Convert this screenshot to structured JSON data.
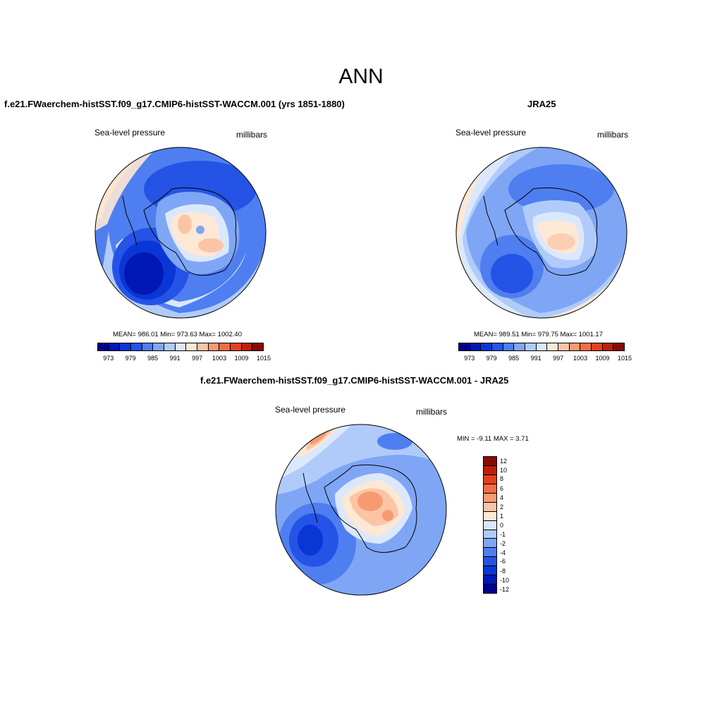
{
  "title": "ANN",
  "panels": [
    {
      "title": "f.e21.FWaerchem-histSST.f09_g17.CMIP6-histSST-WACCM.001 (yrs 1851-1880)",
      "left_label": "Sea-level pressure",
      "right_label": "millibars",
      "stats": "MEAN= 986.01  Min= 973.63  Max= 1002.40",
      "colorbar_ticks": [
        "973",
        "979",
        "985",
        "991",
        "997",
        "1003",
        "1009",
        "1015"
      ]
    },
    {
      "title": "JRA25",
      "left_label": "Sea-level pressure",
      "right_label": "millibars",
      "stats": "MEAN= 989.51  Min= 979.75  Max= 1001.17",
      "colorbar_ticks": [
        "973",
        "979",
        "985",
        "991",
        "997",
        "1003",
        "1009",
        "1015"
      ]
    },
    {
      "title": "f.e21.FWaerchem-histSST.f09_g17.CMIP6-histSST-WACCM.001 - JRA25",
      "left_label": "Sea-level pressure",
      "right_label": "millibars",
      "stats": "MIN =  -9.11 MAX =   3.71",
      "colorbar_ticks": [
        "12",
        "10",
        "8",
        "6",
        "4",
        "2",
        "1",
        "0",
        "-1",
        "-2",
        "-4",
        "-6",
        "-8",
        "-10",
        "-12"
      ]
    }
  ],
  "colors": {
    "abs_palette": [
      "#00008c",
      "#0018b4",
      "#0a36d6",
      "#2553e6",
      "#4f7ef0",
      "#7fa6f5",
      "#b0cbf9",
      "#dbe8fc",
      "#fde8d6",
      "#fbc5a5",
      "#f79a71",
      "#f26d45",
      "#e3401d",
      "#c01e0c",
      "#8a0a05"
    ],
    "diff_palette": [
      "#8a0a05",
      "#c01e0c",
      "#e3401d",
      "#f26d45",
      "#f79a71",
      "#fbc5a5",
      "#fde8d6",
      "#dbe8fc",
      "#b0cbf9",
      "#7fa6f5",
      "#4f7ef0",
      "#2553e6",
      "#0a36d6",
      "#0018b4",
      "#00008c"
    ]
  }
}
